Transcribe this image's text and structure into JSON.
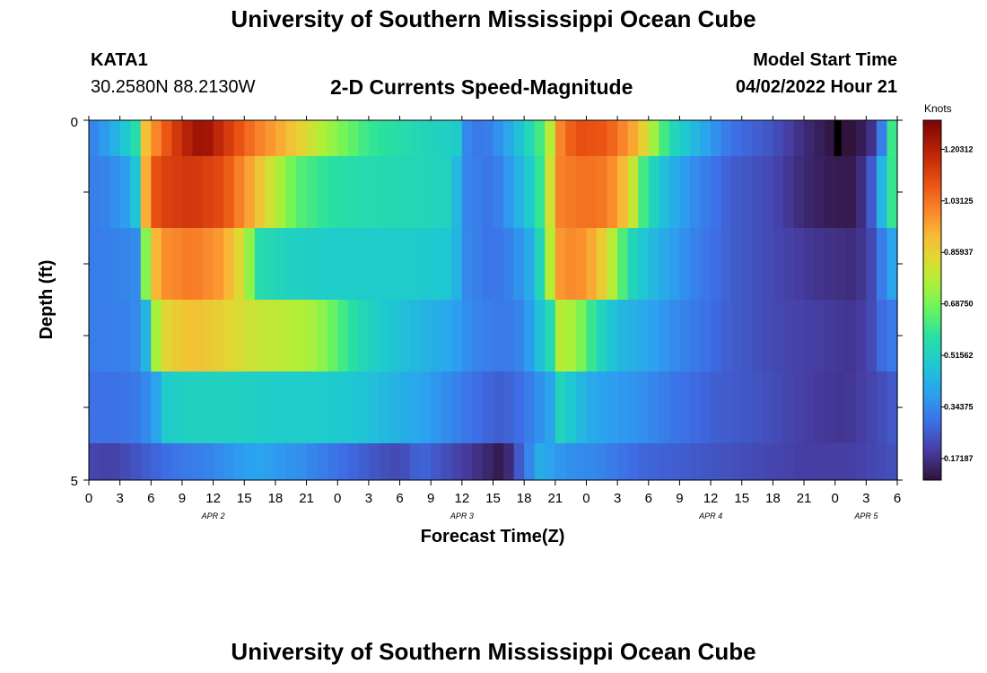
{
  "header": {
    "title": "University of Southern Mississippi Ocean Cube",
    "station_id": "KATA1",
    "station_coords": "30.2580N  88.2130W",
    "subtitle": "2-D Currents Speed-Magnitude",
    "model_label": "Model Start Time",
    "model_time": "04/02/2022 Hour 21"
  },
  "footer": {
    "title_repeat": "University of Southern Mississippi Ocean Cube"
  },
  "chart_data": {
    "type": "heatmap",
    "title": "2-D Currents Speed-Magnitude",
    "xlabel": "Forecast Time(Z)",
    "ylabel": "Depth (ft)",
    "colorbar_label": "Knots",
    "colorbar_ticks": [
      "0.17187",
      "0.34375",
      "0.51562",
      "0.68750",
      "0.85937",
      "1.03125",
      "1.20312"
    ],
    "color_range": [
      0.1,
      1.3
    ],
    "x_range_hours": [
      0,
      78
    ],
    "y_range": [
      0,
      5
    ],
    "y_tick_labels": [
      "0",
      "5"
    ],
    "x_tick_labels": [
      "0",
      "3",
      "6",
      "9",
      "12",
      "15",
      "18",
      "21",
      "0",
      "3",
      "6",
      "9",
      "12",
      "15",
      "18",
      "21",
      "0",
      "3",
      "6",
      "9",
      "12",
      "15",
      "18",
      "21",
      "0",
      "3",
      "6"
    ],
    "date_labels": [
      {
        "label": "APR 2",
        "hour": 12
      },
      {
        "label": "APR 3",
        "hour": 36
      },
      {
        "label": "APR 4",
        "hour": 60
      },
      {
        "label": "APR 5",
        "hour": 75
      }
    ],
    "depth_layers": [
      "0-0.5 ft",
      "0.5-1.5 ft",
      "1.5-2.5 ft",
      "2.5-3.5 ft",
      "3.5-4.5 ft",
      "4.5-5 ft"
    ],
    "rows": [
      {
        "name": "layer-1",
        "keys": [
          [
            0,
            0.32
          ],
          [
            1.5,
            0.38
          ],
          [
            3,
            0.45
          ],
          [
            4.5,
            0.56
          ],
          [
            5.5,
            0.9
          ],
          [
            7,
            1.05
          ],
          [
            9,
            1.18
          ],
          [
            11,
            1.26
          ],
          [
            13,
            1.16
          ],
          [
            16,
            1.02
          ],
          [
            19,
            0.92
          ],
          [
            23,
            0.74
          ],
          [
            27,
            0.6
          ],
          [
            31,
            0.55
          ],
          [
            35.5,
            0.5
          ],
          [
            36.5,
            0.34
          ],
          [
            38,
            0.3
          ],
          [
            40,
            0.38
          ],
          [
            42,
            0.5
          ],
          [
            44,
            0.66
          ],
          [
            45.5,
            1.0
          ],
          [
            47,
            1.1
          ],
          [
            50,
            1.08
          ],
          [
            53,
            0.92
          ],
          [
            55,
            0.68
          ],
          [
            56,
            0.56
          ],
          [
            59,
            0.42
          ],
          [
            62,
            0.3
          ],
          [
            66,
            0.24
          ],
          [
            69,
            0.16
          ],
          [
            72,
            0.1
          ],
          [
            74,
            0.1
          ],
          [
            76,
            0.2
          ],
          [
            77,
            0.45
          ],
          [
            77.8,
            0.7
          ],
          [
            78,
            0.7
          ]
        ]
      },
      {
        "name": "layer-2",
        "keys": [
          [
            0,
            0.32
          ],
          [
            2,
            0.34
          ],
          [
            4,
            0.4
          ],
          [
            5.2,
            0.58
          ],
          [
            5.6,
            1.05
          ],
          [
            7,
            1.12
          ],
          [
            10,
            1.15
          ],
          [
            13,
            1.1
          ],
          [
            16,
            0.92
          ],
          [
            18,
            0.78
          ],
          [
            20,
            0.65
          ],
          [
            23,
            0.58
          ],
          [
            27,
            0.55
          ],
          [
            31,
            0.54
          ],
          [
            35,
            0.52
          ],
          [
            36.2,
            0.34
          ],
          [
            39,
            0.3
          ],
          [
            41,
            0.4
          ],
          [
            43,
            0.52
          ],
          [
            44.2,
            0.7
          ],
          [
            45,
            1.0
          ],
          [
            48,
            1.04
          ],
          [
            50,
            1.02
          ],
          [
            52,
            0.88
          ],
          [
            53.5,
            0.62
          ],
          [
            55,
            0.48
          ],
          [
            58,
            0.36
          ],
          [
            62,
            0.26
          ],
          [
            66,
            0.22
          ],
          [
            69,
            0.15
          ],
          [
            72,
            0.12
          ],
          [
            74,
            0.12
          ],
          [
            76,
            0.3
          ],
          [
            77,
            0.58
          ],
          [
            78,
            0.62
          ]
        ]
      },
      {
        "name": "layer-3",
        "keys": [
          [
            0,
            0.32
          ],
          [
            3,
            0.33
          ],
          [
            5.2,
            0.36
          ],
          [
            5.6,
            0.82
          ],
          [
            7,
            0.98
          ],
          [
            10,
            1.02
          ],
          [
            13,
            0.96
          ],
          [
            15,
            0.8
          ],
          [
            16.5,
            0.56
          ],
          [
            19,
            0.52
          ],
          [
            23,
            0.5
          ],
          [
            27,
            0.5
          ],
          [
            31,
            0.5
          ],
          [
            35,
            0.48
          ],
          [
            36.5,
            0.34
          ],
          [
            39,
            0.3
          ],
          [
            41,
            0.34
          ],
          [
            43,
            0.44
          ],
          [
            44.2,
            0.66
          ],
          [
            45,
            0.96
          ],
          [
            47,
            1.0
          ],
          [
            49,
            0.92
          ],
          [
            51,
            0.72
          ],
          [
            52,
            0.55
          ],
          [
            54,
            0.46
          ],
          [
            58,
            0.34
          ],
          [
            62,
            0.26
          ],
          [
            66,
            0.22
          ],
          [
            70,
            0.18
          ],
          [
            74,
            0.16
          ],
          [
            76,
            0.24
          ],
          [
            77,
            0.4
          ],
          [
            78,
            0.4
          ]
        ]
      },
      {
        "name": "layer-4",
        "keys": [
          [
            0,
            0.32
          ],
          [
            4,
            0.33
          ],
          [
            5.4,
            0.38
          ],
          [
            6,
            0.7
          ],
          [
            7.5,
            0.85
          ],
          [
            10,
            0.9
          ],
          [
            13,
            0.86
          ],
          [
            16,
            0.8
          ],
          [
            19,
            0.78
          ],
          [
            22,
            0.74
          ],
          [
            24,
            0.64
          ],
          [
            26,
            0.55
          ],
          [
            29,
            0.48
          ],
          [
            32,
            0.44
          ],
          [
            35,
            0.4
          ],
          [
            37,
            0.34
          ],
          [
            40,
            0.31
          ],
          [
            42,
            0.34
          ],
          [
            44.5,
            0.55
          ],
          [
            45,
            0.78
          ],
          [
            47,
            0.74
          ],
          [
            49,
            0.55
          ],
          [
            51,
            0.45
          ],
          [
            54,
            0.4
          ],
          [
            58,
            0.32
          ],
          [
            62,
            0.26
          ],
          [
            66,
            0.22
          ],
          [
            70,
            0.2
          ],
          [
            74,
            0.18
          ],
          [
            76,
            0.24
          ],
          [
            77,
            0.33
          ],
          [
            78,
            0.3
          ]
        ]
      },
      {
        "name": "layer-5",
        "keys": [
          [
            0,
            0.3
          ],
          [
            3,
            0.3
          ],
          [
            5,
            0.32
          ],
          [
            6.5,
            0.4
          ],
          [
            7.5,
            0.5
          ],
          [
            10,
            0.52
          ],
          [
            14,
            0.52
          ],
          [
            18,
            0.5
          ],
          [
            22,
            0.5
          ],
          [
            26,
            0.48
          ],
          [
            29,
            0.44
          ],
          [
            32,
            0.4
          ],
          [
            35,
            0.34
          ],
          [
            38,
            0.28
          ],
          [
            40,
            0.26
          ],
          [
            42,
            0.3
          ],
          [
            44.5,
            0.4
          ],
          [
            45,
            0.55
          ],
          [
            47,
            0.46
          ],
          [
            49,
            0.4
          ],
          [
            53,
            0.36
          ],
          [
            57,
            0.3
          ],
          [
            61,
            0.26
          ],
          [
            65,
            0.24
          ],
          [
            69,
            0.2
          ],
          [
            73,
            0.18
          ],
          [
            76,
            0.22
          ],
          [
            78,
            0.26
          ]
        ]
      },
      {
        "name": "layer-6",
        "keys": [
          [
            0,
            0.22
          ],
          [
            2,
            0.2
          ],
          [
            5,
            0.25
          ],
          [
            8,
            0.3
          ],
          [
            12,
            0.34
          ],
          [
            16,
            0.4
          ],
          [
            20,
            0.36
          ],
          [
            24,
            0.3
          ],
          [
            28,
            0.24
          ],
          [
            30,
            0.22
          ],
          [
            32,
            0.28
          ],
          [
            34,
            0.24
          ],
          [
            36,
            0.2
          ],
          [
            38,
            0.16
          ],
          [
            40,
            0.11
          ],
          [
            42,
            0.3
          ],
          [
            43.5,
            0.42
          ],
          [
            46,
            0.36
          ],
          [
            49,
            0.34
          ],
          [
            53,
            0.28
          ],
          [
            57,
            0.26
          ],
          [
            61,
            0.24
          ],
          [
            65,
            0.22
          ],
          [
            69,
            0.2
          ],
          [
            73,
            0.2
          ],
          [
            76,
            0.22
          ],
          [
            78,
            0.24
          ]
        ]
      }
    ],
    "marker": {
      "hour": 72,
      "layer": 1,
      "color": "#000000"
    }
  }
}
